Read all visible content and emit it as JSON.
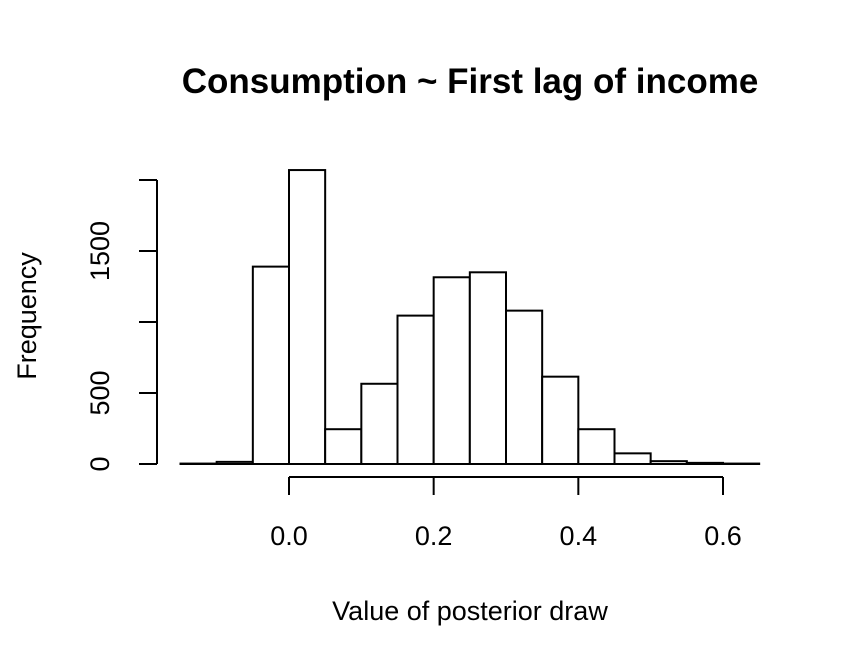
{
  "chart_data": {
    "type": "bar",
    "title": "Consumption ~ First lag of income",
    "xlabel": "Value of posterior draw",
    "ylabel": "Frequency",
    "bin_edges": [
      -0.15,
      -0.1,
      -0.05,
      0.0,
      0.05,
      0.1,
      0.15,
      0.2,
      0.25,
      0.3,
      0.35,
      0.4,
      0.45,
      0.5,
      0.55,
      0.6,
      0.65
    ],
    "values": [
      3,
      15,
      1390,
      2070,
      245,
      565,
      1045,
      1315,
      1350,
      1080,
      615,
      245,
      75,
      20,
      8,
      3
    ],
    "x_ticks": [
      0.0,
      0.2,
      0.4,
      0.6
    ],
    "x_tick_labels": [
      "0.0",
      "0.2",
      "0.4",
      "0.6"
    ],
    "y_ticks": [
      0,
      500,
      1000,
      1500,
      2000
    ],
    "y_tick_labels": [
      "0",
      "500",
      "",
      "1500",
      ""
    ],
    "xlim": [
      -0.15,
      0.65
    ],
    "ylim": [
      0,
      2000
    ],
    "grid": false,
    "legend": "none",
    "colors": {
      "bar_fill": "#ffffff",
      "bar_stroke": "#000000"
    }
  }
}
